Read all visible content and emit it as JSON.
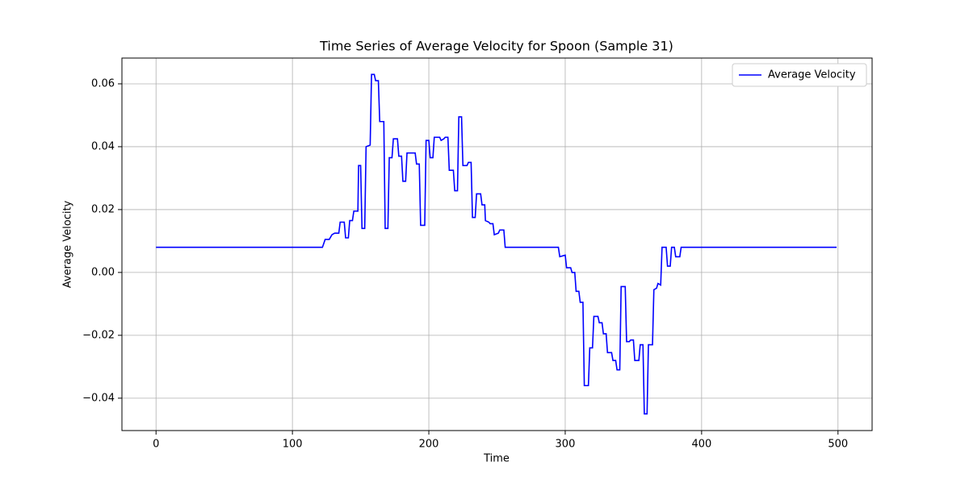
{
  "chart_data": {
    "type": "line",
    "title": "Time Series of Average Velocity for Spoon (Sample 31)",
    "x_label": "Time",
    "y_label": "Average Velocity",
    "x": [
      0,
      122,
      124,
      127,
      129,
      131,
      134,
      135,
      138,
      139,
      141,
      142,
      144,
      145,
      148,
      148.5,
      150,
      151,
      153,
      154,
      157,
      158,
      160,
      161,
      163,
      164,
      167,
      168,
      170,
      171,
      173,
      174,
      177,
      178,
      180,
      181,
      183,
      184,
      190,
      191,
      193,
      194,
      197,
      198,
      200,
      201,
      203,
      204,
      208,
      209,
      211,
      212,
      214,
      215,
      218,
      219,
      221,
      222,
      224,
      225,
      228,
      229,
      231,
      232,
      234,
      235,
      238,
      239,
      241,
      241.5,
      244,
      245,
      247,
      248,
      251,
      252,
      255,
      256,
      295,
      296,
      300,
      301,
      304,
      305,
      307,
      308,
      310,
      311,
      313,
      314,
      317,
      318,
      320,
      321,
      324,
      325,
      327,
      328,
      330,
      331,
      334,
      335,
      337,
      338,
      340,
      341,
      344,
      345,
      347,
      348,
      350,
      351,
      354,
      355,
      357,
      358,
      360,
      361,
      364,
      365,
      367,
      368,
      370,
      371,
      374,
      375,
      377,
      378,
      380,
      381,
      384,
      385,
      499
    ],
    "series": [
      {
        "name": "Average Velocity",
        "color": "#0000ff",
        "values": [
          0.008,
          0.008,
          0.0105,
          0.0105,
          0.012,
          0.0125,
          0.0125,
          0.016,
          0.016,
          0.011,
          0.011,
          0.0165,
          0.0165,
          0.0195,
          0.0195,
          0.034,
          0.034,
          0.014,
          0.014,
          0.04,
          0.0405,
          0.063,
          0.063,
          0.061,
          0.061,
          0.048,
          0.048,
          0.014,
          0.014,
          0.0365,
          0.0365,
          0.0425,
          0.0425,
          0.037,
          0.037,
          0.029,
          0.029,
          0.038,
          0.038,
          0.0345,
          0.0345,
          0.015,
          0.015,
          0.042,
          0.042,
          0.0365,
          0.0365,
          0.043,
          0.043,
          0.042,
          0.0425,
          0.043,
          0.043,
          0.0325,
          0.0325,
          0.026,
          0.026,
          0.0495,
          0.0495,
          0.034,
          0.034,
          0.035,
          0.035,
          0.0175,
          0.0175,
          0.025,
          0.025,
          0.0215,
          0.0215,
          0.0165,
          0.016,
          0.0155,
          0.0155,
          0.012,
          0.0125,
          0.0135,
          0.0135,
          0.008,
          0.008,
          0.005,
          0.0055,
          0.0015,
          0.0015,
          0,
          0,
          -0.006,
          -0.006,
          -0.0095,
          -0.0095,
          -0.036,
          -0.036,
          -0.024,
          -0.024,
          -0.014,
          -0.014,
          -0.016,
          -0.016,
          -0.0195,
          -0.0195,
          -0.0255,
          -0.0255,
          -0.028,
          -0.028,
          -0.031,
          -0.031,
          -0.0045,
          -0.0045,
          -0.022,
          -0.022,
          -0.0215,
          -0.0215,
          -0.028,
          -0.028,
          -0.023,
          -0.023,
          -0.045,
          -0.045,
          -0.023,
          -0.023,
          -0.0055,
          -0.005,
          -0.0035,
          -0.004,
          0.008,
          0.008,
          0.002,
          0.002,
          0.008,
          0.008,
          0.005,
          0.005,
          0.008,
          0.008
        ]
      }
    ],
    "xlim": [
      -25,
      525
    ],
    "xticks": [
      0,
      100,
      200,
      300,
      400,
      500
    ],
    "ylim": [
      -0.0503,
      0.0682
    ],
    "yticks": [
      {
        "value": -0.04,
        "label": "−0.04"
      },
      {
        "value": -0.02,
        "label": "−0.02"
      },
      {
        "value": 0,
        "label": "0.00"
      },
      {
        "value": 0.02,
        "label": "0.02"
      },
      {
        "value": 0.04,
        "label": "0.04"
      },
      {
        "value": 0.06,
        "label": "0.06"
      }
    ],
    "grid": true,
    "legend": "upper-right"
  }
}
